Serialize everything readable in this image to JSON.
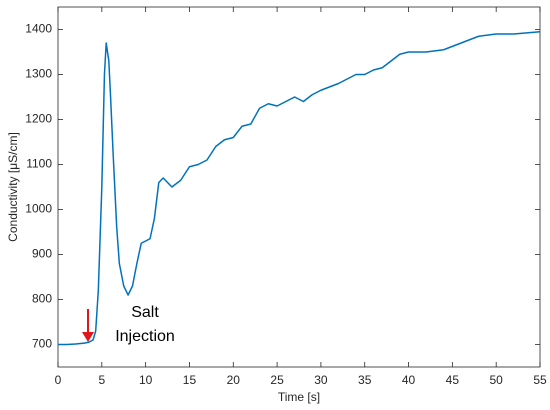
{
  "chart_data": {
    "type": "line",
    "x_label": "Time [s]",
    "y_label": "Conductivity [μS/cm]",
    "annotation": [
      "Salt",
      "Injection"
    ],
    "x": [
      0,
      1,
      2,
      3,
      3.5,
      4,
      4.3,
      4.6,
      5,
      5.3,
      5.5,
      5.8,
      6,
      6.3,
      6.7,
      7,
      7.5,
      8,
      8.5,
      9,
      9.5,
      10,
      10.5,
      11,
      11.5,
      12,
      12.5,
      13,
      14,
      15,
      16,
      17,
      18,
      19,
      20,
      21,
      22,
      23,
      24,
      25,
      26,
      27,
      28,
      29,
      30,
      32,
      34,
      35,
      36,
      37,
      38,
      39,
      40,
      42,
      44,
      46,
      48,
      50,
      52,
      55
    ],
    "series": [
      {
        "color": "#0072bd",
        "values": [
          700,
          700,
          701,
          703,
          705,
          710,
          730,
          820,
          1050,
          1300,
          1370,
          1330,
          1250,
          1120,
          960,
          880,
          830,
          810,
          830,
          880,
          925,
          930,
          935,
          980,
          1060,
          1070,
          1060,
          1050,
          1065,
          1095,
          1100,
          1110,
          1140,
          1155,
          1160,
          1185,
          1190,
          1225,
          1235,
          1230,
          1240,
          1250,
          1240,
          1255,
          1265,
          1280,
          1300,
          1300,
          1310,
          1315,
          1330,
          1345,
          1350,
          1350,
          1355,
          1370,
          1385,
          1390,
          1390,
          1395
        ]
      }
    ],
    "xlim": [
      0,
      55
    ],
    "xticks": [
      0,
      5,
      10,
      15,
      20,
      25,
      30,
      35,
      40,
      45,
      50,
      55
    ],
    "ylim": [
      650,
      1450
    ],
    "yticks": [
      700,
      800,
      900,
      1000,
      1100,
      1200,
      1300,
      1400
    ],
    "arrow_color": "#e0161b"
  }
}
